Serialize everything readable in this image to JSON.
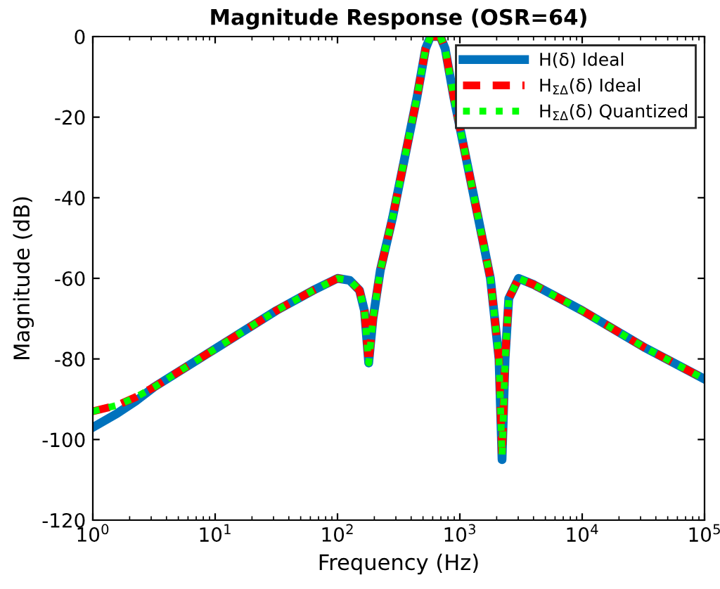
{
  "chart_data": {
    "type": "line",
    "title": "Magnitude Response (OSR=64)",
    "xlabel": "Frequency (Hz)",
    "ylabel": "Magnitude (dB)",
    "log": "x",
    "x": [
      1,
      1.585,
      2.239,
      3.162,
      10,
      31.62,
      63.1,
      100,
      125.9,
      151.4,
      166,
      179.9,
      195,
      223.9,
      281.8,
      354.8,
      446.7,
      524.8,
      575.4,
      691.8,
      758.6,
      891.3,
      1122,
      1413,
      1778,
      2089,
      2213,
      2344,
      2512,
      3020,
      3981,
      10000,
      31623,
      100000
    ],
    "series": [
      {
        "name": "H(δ) Ideal",
        "color": "#0072bd",
        "line_style": "solid",
        "values": [
          -97,
          -93.5,
          -90.5,
          -87,
          -77.5,
          -68,
          -63,
          -60,
          -60.5,
          -63,
          -68,
          -81,
          -70,
          -58,
          -45,
          -30,
          -15,
          -3,
          0,
          0,
          -3,
          -15,
          -30,
          -45,
          -60,
          -80,
          -105,
          -80,
          -65,
          -60,
          -61.5,
          -68,
          -77,
          -85
        ]
      },
      {
        "name": "H$_{ΣΔ}$(δ) Ideal",
        "color": "#ff0000",
        "line_style": "dashed",
        "values": [
          -93,
          -91.5,
          -89.5,
          -87,
          -77.5,
          -68,
          -63,
          -60,
          -60.5,
          -63,
          -68,
          -81,
          -70,
          -58,
          -45,
          -30,
          -15,
          -3,
          0,
          0,
          -3,
          -15,
          -30,
          -45,
          -60,
          -80,
          -104,
          -80,
          -65,
          -60,
          -61.5,
          -68,
          -77,
          -85
        ]
      },
      {
        "name": "H$_{ΣΔ}$(δ) Quantized",
        "color": "#00ff00",
        "line_style": "dotted",
        "values": [
          -93,
          -91.5,
          -89.5,
          -87,
          -77.5,
          -68,
          -63,
          -60,
          -60.5,
          -63,
          -68,
          -81,
          -70,
          -58,
          -45,
          -30,
          -15,
          -3,
          0,
          0,
          -3,
          -15,
          -30,
          -45,
          -60,
          -80,
          -104,
          -80,
          -65,
          -60,
          -61.5,
          -68,
          -77,
          -85
        ]
      }
    ],
    "xlim": [
      1,
      100000
    ],
    "ylim": [
      -120,
      0
    ],
    "xticks": [
      {
        "value": 1,
        "label": "10$^{0}$"
      },
      {
        "value": 10,
        "label": "10$^{1}$"
      },
      {
        "value": 100,
        "label": "10$^{2}$"
      },
      {
        "value": 1000,
        "label": "10$^{3}$"
      },
      {
        "value": 10000,
        "label": "10$^{4}$"
      },
      {
        "value": 100000,
        "label": "10$^{5}$"
      }
    ],
    "yticks": [
      -120,
      -100,
      -80,
      -60,
      -40,
      -20,
      0
    ],
    "grid": false,
    "legend": "top right",
    "marker": "none"
  }
}
